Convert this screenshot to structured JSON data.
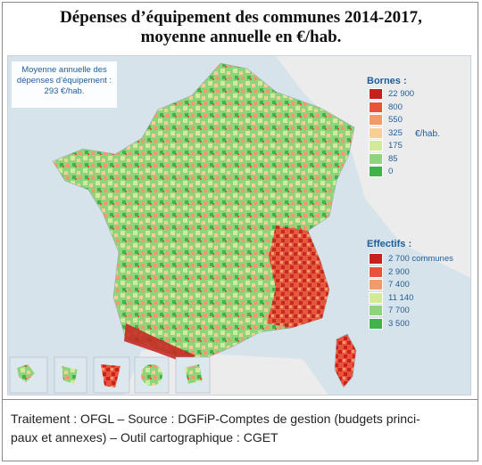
{
  "title_line1": "Dépenses d’équipement des communes 2014-2017,",
  "title_line2": "moyenne annuelle en €/hab.",
  "average_box": {
    "line1": "Moyenne annuelle des",
    "line2": "dépenses d’équipement :",
    "value": "293 €/hab."
  },
  "legend_bornes": {
    "title": "Bornes :",
    "unit": "€/hab.",
    "classes": [
      {
        "label": "22 900",
        "color": "#c8201e"
      },
      {
        "label": "800",
        "color": "#e8533a"
      },
      {
        "label": "550",
        "color": "#f39a6b"
      },
      {
        "label": "325",
        "color": "#f7cf93"
      },
      {
        "label": "175",
        "color": "#d3ea9a"
      },
      {
        "label": "85",
        "color": "#8fd47c"
      },
      {
        "label": "0",
        "color": "#3fb34a"
      }
    ]
  },
  "legend_effectifs": {
    "title": "Effectifs :",
    "classes": [
      {
        "label": "2 700 communes",
        "color": "#c8201e"
      },
      {
        "label": "2 900",
        "color": "#e8533a"
      },
      {
        "label": "7 400",
        "color": "#f39a6b"
      },
      {
        "label": "11 140",
        "color": "#d3ea9a"
      },
      {
        "label": "7 700",
        "color": "#8fd47c"
      },
      {
        "label": "3 500",
        "color": "#3fb34a"
      }
    ]
  },
  "caption_line1": "Traitement : OFGL – Source : DGFiP-Comptes de gestion (budgets princi-",
  "caption_line2": "paux et annexes) – Outil cartographique : CGET",
  "colors": {
    "sea": "#d7e3ea",
    "land_abroad": "#ececec",
    "high": "#c8201e",
    "low": "#3fb34a"
  }
}
